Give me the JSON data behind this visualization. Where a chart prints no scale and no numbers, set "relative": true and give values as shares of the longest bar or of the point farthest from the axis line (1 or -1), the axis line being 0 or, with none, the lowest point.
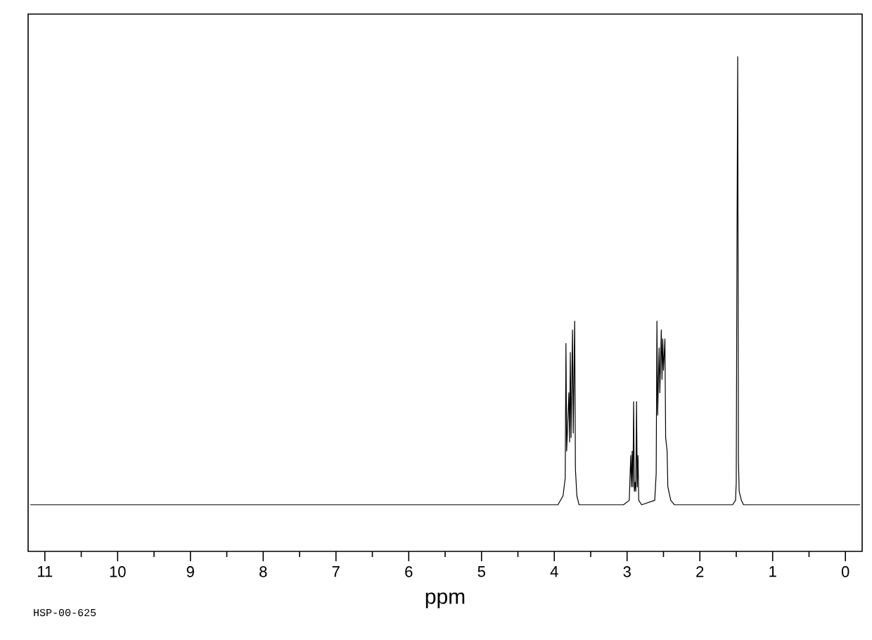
{
  "chart_data": {
    "type": "line",
    "relative": true,
    "xlabel": "ppm",
    "annotations": [
      "HSP-00-625"
    ],
    "xlim": [
      11.23,
      -0.23
    ],
    "xticks": [
      11,
      10,
      9,
      8,
      7,
      6,
      5,
      4,
      3,
      2,
      1,
      0
    ],
    "color": "#000000",
    "x": [
      11.2,
      3.95,
      3.88,
      3.85,
      3.84,
      3.83,
      3.8,
      3.79,
      3.78,
      3.77,
      3.75,
      3.74,
      3.72,
      3.71,
      3.69,
      3.66,
      3.05,
      2.97,
      2.95,
      2.94,
      2.93,
      2.92,
      2.91,
      2.9,
      2.89,
      2.88,
      2.87,
      2.86,
      2.85,
      2.84,
      2.8,
      2.62,
      2.6,
      2.59,
      2.58,
      2.56,
      2.55,
      2.53,
      2.52,
      2.51,
      2.5,
      2.48,
      2.47,
      2.45,
      2.44,
      2.4,
      2.35,
      1.55,
      1.51,
      1.5,
      1.49,
      1.48,
      1.47,
      1.46,
      1.43,
      1.4,
      -0.2
    ],
    "values": [
      0,
      0,
      0.02,
      0.06,
      0.36,
      0.12,
      0.25,
      0.14,
      0.34,
      0.15,
      0.39,
      0.16,
      0.41,
      0.08,
      0.02,
      0,
      0,
      0.01,
      0.11,
      0.04,
      0.12,
      0.04,
      0.23,
      0.03,
      0.05,
      0.03,
      0.23,
      0.04,
      0.11,
      0.01,
      0,
      0.01,
      0.07,
      0.41,
      0.2,
      0.35,
      0.25,
      0.39,
      0.28,
      0.37,
      0.3,
      0.37,
      0.15,
      0.12,
      0.04,
      0.01,
      0,
      0,
      0.01,
      0.05,
      0.58,
      1.0,
      0.1,
      0.03,
      0.01,
      0,
      0
    ]
  }
}
